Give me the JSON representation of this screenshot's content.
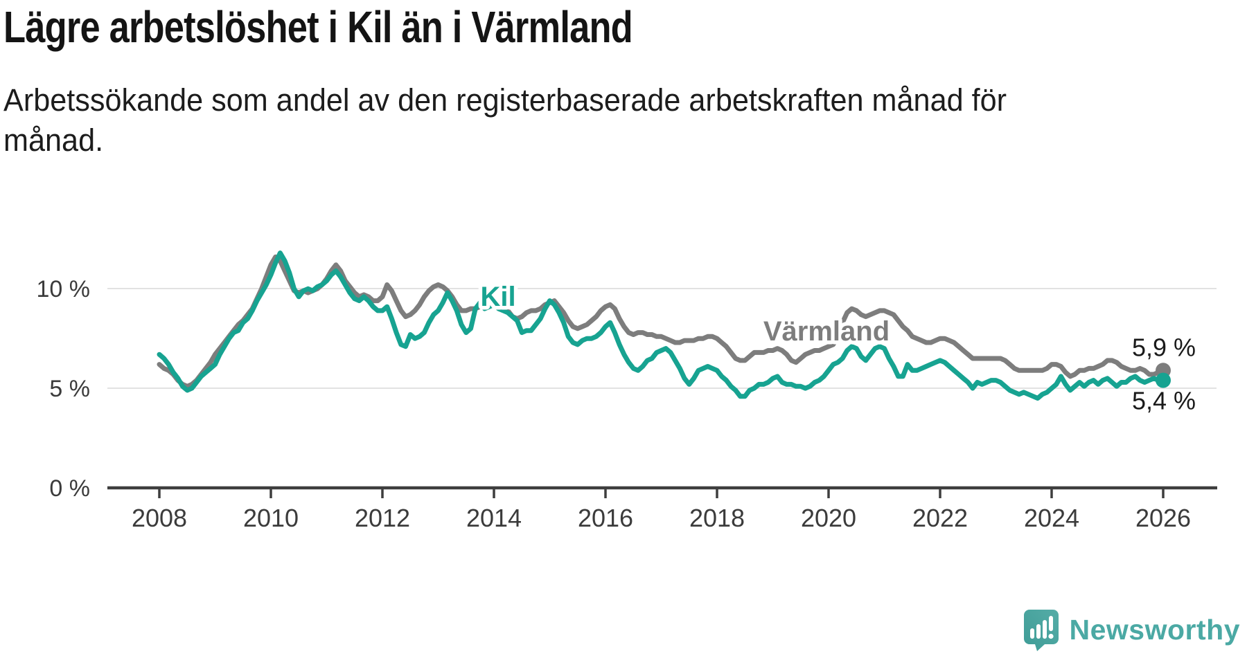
{
  "header": {
    "title": "Lägre arbetslöshet i Kil än i Värmland",
    "subtitle_line1": "Arbetssökande som andel av den registerbaserade arbetskraften månad för",
    "subtitle_line2": "månad."
  },
  "chart_data": {
    "type": "line",
    "title": "Lägre arbetslöshet i Kil än i Värmland",
    "subtitle": "Arbetssökande som andel av den registerbaserade arbetskraften månad för månad.",
    "frequency": "monthly",
    "x_start": "2008-01",
    "x_end": "2026-01",
    "x_tick_years": [
      2008,
      2010,
      2012,
      2014,
      2016,
      2018,
      2020,
      2022,
      2024,
      2026
    ],
    "y_tick_labels": [
      "0 %",
      "5 %",
      "10 %"
    ],
    "y_tick_values": [
      0,
      5,
      10
    ],
    "y_gridlines": [
      5,
      10
    ],
    "ylim": [
      0,
      12.5
    ],
    "grid": "horizontal-only",
    "legend_position": "inline-labels",
    "series": [
      {
        "id": "varmland",
        "name": "Värmland",
        "color": "#7D7D7D",
        "end_label": "5,9 %",
        "label_side": "above",
        "values": [
          6.2,
          6.0,
          5.9,
          5.7,
          5.4,
          5.2,
          5.1,
          5.2,
          5.4,
          5.7,
          6.0,
          6.3,
          6.7,
          7.0,
          7.3,
          7.6,
          7.9,
          8.2,
          8.4,
          8.7,
          9.0,
          9.5,
          10.0,
          10.6,
          11.2,
          11.6,
          11.4,
          10.9,
          10.4,
          9.9,
          9.8,
          9.9,
          9.8,
          9.9,
          10.0,
          10.2,
          10.5,
          10.9,
          11.2,
          10.9,
          10.4,
          10.1,
          9.8,
          9.6,
          9.7,
          9.6,
          9.4,
          9.4,
          9.6,
          10.2,
          9.9,
          9.4,
          8.9,
          8.6,
          8.7,
          8.9,
          9.2,
          9.6,
          9.9,
          10.1,
          10.2,
          10.1,
          9.9,
          9.6,
          9.2,
          8.9,
          8.9,
          9.0,
          9.0,
          9.1,
          9.2,
          9.2,
          9.2,
          9.1,
          9.0,
          8.9,
          8.6,
          8.5,
          8.6,
          8.8,
          8.9,
          8.9,
          9.0,
          9.2,
          9.3,
          9.4,
          9.1,
          8.8,
          8.4,
          8.1,
          8.0,
          8.1,
          8.2,
          8.4,
          8.6,
          8.9,
          9.1,
          9.2,
          9.0,
          8.5,
          8.1,
          7.8,
          7.7,
          7.8,
          7.8,
          7.7,
          7.7,
          7.6,
          7.6,
          7.5,
          7.4,
          7.3,
          7.3,
          7.4,
          7.4,
          7.4,
          7.5,
          7.5,
          7.6,
          7.6,
          7.5,
          7.3,
          7.1,
          6.8,
          6.5,
          6.4,
          6.4,
          6.6,
          6.8,
          6.8,
          6.8,
          6.9,
          6.9,
          7.0,
          6.9,
          6.7,
          6.4,
          6.3,
          6.5,
          6.7,
          6.8,
          6.9,
          6.9,
          7.0,
          7.1,
          7.2,
          7.6,
          8.3,
          8.8,
          9.0,
          8.9,
          8.7,
          8.6,
          8.7,
          8.8,
          8.9,
          8.9,
          8.8,
          8.7,
          8.4,
          8.1,
          7.9,
          7.6,
          7.5,
          7.4,
          7.3,
          7.3,
          7.4,
          7.5,
          7.5,
          7.4,
          7.3,
          7.1,
          6.9,
          6.7,
          6.5,
          6.5,
          6.5,
          6.5,
          6.5,
          6.5,
          6.5,
          6.4,
          6.2,
          6.0,
          5.9,
          5.9,
          5.9,
          5.9,
          5.9,
          5.9,
          6.0,
          6.2,
          6.2,
          6.1,
          5.8,
          5.6,
          5.7,
          5.9,
          5.9,
          6.0,
          6.0,
          6.1,
          6.2,
          6.4,
          6.4,
          6.3,
          6.1,
          6.0,
          5.9,
          5.9,
          6.0,
          5.9,
          5.7,
          5.7,
          5.8,
          5.9
        ]
      },
      {
        "id": "kil",
        "name": "Kil",
        "color": "#17A391",
        "end_label": "5,4 %",
        "label_side": "below",
        "values": [
          6.7,
          6.5,
          6.2,
          5.8,
          5.5,
          5.1,
          4.9,
          5.0,
          5.3,
          5.6,
          5.8,
          6.0,
          6.2,
          6.7,
          7.1,
          7.5,
          7.8,
          7.9,
          8.3,
          8.5,
          8.9,
          9.4,
          9.8,
          10.2,
          10.7,
          11.3,
          11.8,
          11.4,
          10.8,
          10.0,
          9.6,
          9.9,
          10.0,
          9.9,
          10.1,
          10.2,
          10.4,
          10.7,
          10.9,
          10.6,
          10.2,
          9.8,
          9.5,
          9.4,
          9.6,
          9.4,
          9.1,
          8.9,
          8.9,
          9.1,
          8.5,
          7.8,
          7.2,
          7.1,
          7.7,
          7.5,
          7.6,
          7.8,
          8.3,
          8.7,
          8.9,
          9.3,
          9.8,
          9.4,
          8.9,
          8.2,
          7.8,
          8.0,
          9.0,
          9.3,
          9.0,
          9.1,
          9.2,
          9.0,
          8.9,
          8.8,
          8.6,
          8.4,
          7.8,
          7.9,
          7.9,
          8.2,
          8.5,
          9.0,
          9.4,
          9.2,
          8.8,
          8.3,
          7.6,
          7.3,
          7.2,
          7.4,
          7.5,
          7.5,
          7.6,
          7.8,
          8.1,
          8.3,
          7.8,
          7.2,
          6.7,
          6.3,
          6.0,
          5.9,
          6.1,
          6.4,
          6.5,
          6.8,
          6.9,
          7.0,
          6.8,
          6.4,
          6.0,
          5.5,
          5.2,
          5.5,
          5.9,
          6.0,
          6.1,
          6.0,
          5.9,
          5.6,
          5.4,
          5.1,
          4.9,
          4.6,
          4.6,
          4.9,
          5.0,
          5.2,
          5.2,
          5.3,
          5.5,
          5.6,
          5.3,
          5.2,
          5.2,
          5.1,
          5.1,
          5.0,
          5.1,
          5.3,
          5.4,
          5.6,
          5.9,
          6.2,
          6.3,
          6.5,
          6.9,
          7.1,
          7.0,
          6.6,
          6.4,
          6.7,
          7.0,
          7.1,
          7.0,
          6.5,
          6.1,
          5.6,
          5.6,
          6.2,
          5.9,
          5.9,
          6.0,
          6.1,
          6.2,
          6.3,
          6.4,
          6.3,
          6.1,
          5.9,
          5.7,
          5.5,
          5.3,
          5.0,
          5.3,
          5.2,
          5.3,
          5.4,
          5.4,
          5.3,
          5.1,
          4.9,
          4.8,
          4.7,
          4.8,
          4.7,
          4.6,
          4.5,
          4.7,
          4.8,
          5.0,
          5.2,
          5.6,
          5.2,
          4.9,
          5.1,
          5.3,
          5.1,
          5.3,
          5.4,
          5.2,
          5.4,
          5.5,
          5.3,
          5.1,
          5.3,
          5.3,
          5.5,
          5.6,
          5.4,
          5.3,
          5.4,
          5.5,
          5.4,
          5.4
        ]
      }
    ]
  },
  "branding": {
    "logo_text": "Newsworthy",
    "logo_color": "#4BA9A4",
    "icon": "newsworthy-speech-bubble-bar-chart-icon"
  }
}
